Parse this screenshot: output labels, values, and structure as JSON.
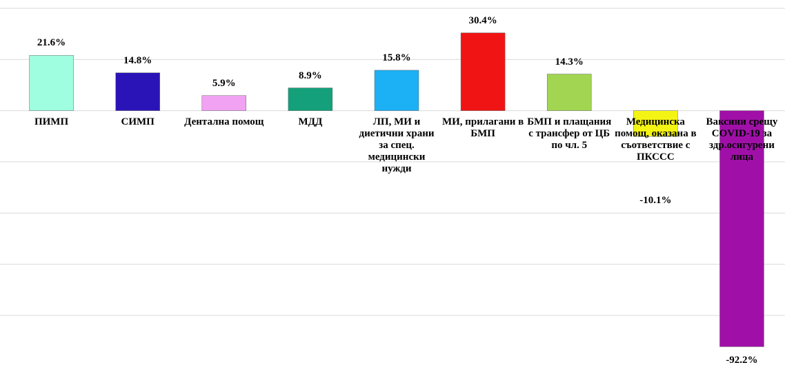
{
  "chart_data": {
    "type": "bar",
    "categories": [
      "ПИМП",
      "СИМП",
      "Дентална помощ",
      "МДД",
      "ЛП, МИ и диетични храни за спец. медицински нужди",
      "МИ, прилагани в БМП",
      "БМП и плащания с трансфер от ЦБ по чл. 5",
      "Медицинска помощ, оказана в съответствие с ПКССС",
      "Ваксини срещу COVID-19 за здр.осигурени лица"
    ],
    "values": [
      21.6,
      14.8,
      5.9,
      8.9,
      15.8,
      30.4,
      14.3,
      -10.1,
      -92.2
    ],
    "value_labels": [
      "21.6%",
      "14.8%",
      "5.9%",
      "8.9%",
      "15.8%",
      "30.4%",
      "14.3%",
      "-10.1%",
      "-92.2%"
    ],
    "colors": [
      "#9ffde0",
      "#2a14b8",
      "#f2a2f2",
      "#14a07a",
      "#1cb0f4",
      "#f01414",
      "#a2d652",
      "#f4f414",
      "#a010a8"
    ],
    "ylim": [
      -98,
      40
    ],
    "yticks": [
      40,
      20,
      0,
      -20,
      -40,
      -60,
      -80
    ],
    "grid": true
  }
}
